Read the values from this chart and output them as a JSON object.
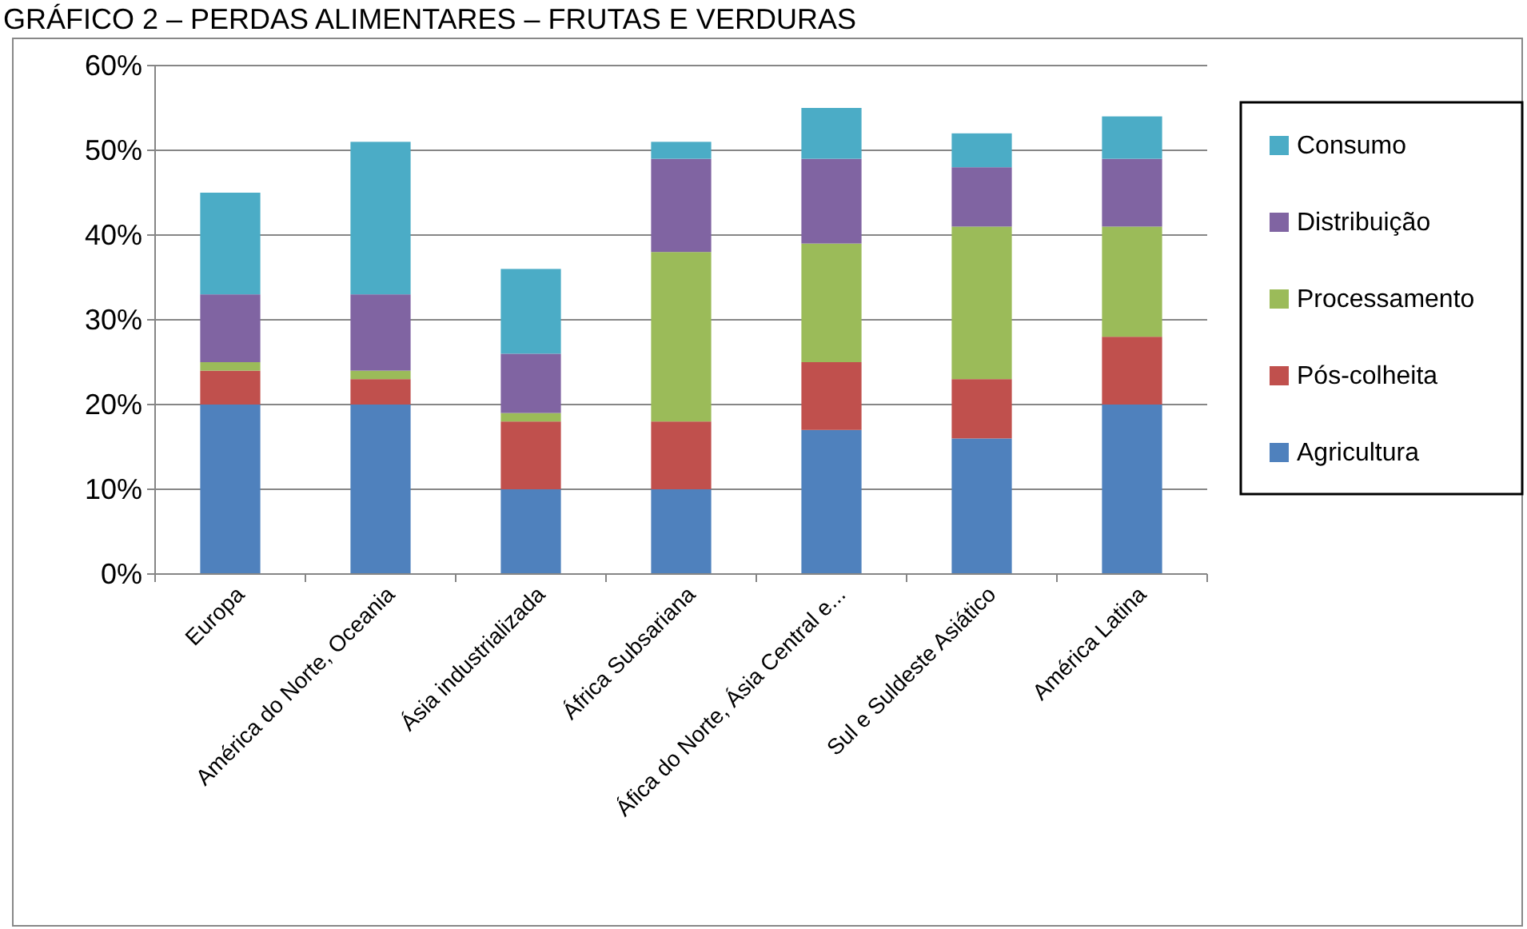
{
  "chart_data": {
    "type": "bar",
    "title": "GRÁFICO 2 – PERDAS ALIMENTARES – FRUTAS E VERDURAS",
    "stacked": true,
    "categories": [
      "Europa",
      "América do Norte, Oceania",
      "Ásia industrializada",
      "África Subsariana",
      "Áfica do Norte, Ásia Central e...",
      "Sul e Suldeste Asiático",
      "América Latina"
    ],
    "series": [
      {
        "name": "Agricultura",
        "color": "#4f81bd",
        "values": [
          20,
          20,
          10,
          10,
          17,
          16,
          20
        ]
      },
      {
        "name": "Pós-colheita",
        "color": "#c0504d",
        "values": [
          4,
          3,
          8,
          8,
          8,
          7,
          8
        ]
      },
      {
        "name": "Processamento",
        "color": "#9bbb59",
        "values": [
          1,
          1,
          1,
          20,
          14,
          18,
          13
        ]
      },
      {
        "name": "Distribuição",
        "color": "#8064a2",
        "values": [
          8,
          9,
          7,
          11,
          10,
          7,
          8
        ]
      },
      {
        "name": "Consumo",
        "color": "#4bacc6",
        "values": [
          12,
          18,
          10,
          2,
          6,
          4,
          5
        ]
      }
    ],
    "ylim": [
      0,
      60
    ],
    "yticks": [
      {
        "value": 0,
        "label": "0%"
      },
      {
        "value": 10,
        "label": "10%"
      },
      {
        "value": 20,
        "label": "20%"
      },
      {
        "value": 30,
        "label": "30%"
      },
      {
        "value": 40,
        "label": "40%"
      },
      {
        "value": 50,
        "label": "50%"
      },
      {
        "value": 60,
        "label": "60%"
      }
    ],
    "grid": "y",
    "legend": "right"
  }
}
